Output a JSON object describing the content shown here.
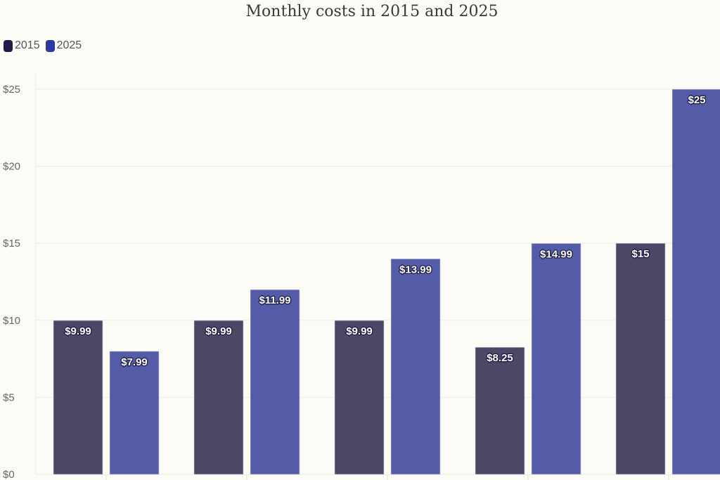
{
  "chart_data": {
    "type": "bar",
    "title": "Monthly costs in 2015 and 2025",
    "categories": [
      "",
      "",
      "",
      "",
      ""
    ],
    "series": [
      {
        "name": "2015",
        "values": [
          9.99,
          9.99,
          9.99,
          8.25,
          15
        ],
        "labels": [
          "$9.99",
          "$9.99",
          "$9.99",
          "$8.25",
          "$15"
        ],
        "color": "#4a4866",
        "legend_color": "#1f1d45"
      },
      {
        "name": "2025",
        "values": [
          7.99,
          11.99,
          13.99,
          14.99,
          25
        ],
        "labels": [
          "$7.99",
          "$11.99",
          "$13.99",
          "$14.99",
          "$25"
        ],
        "color": "#545ca8",
        "legend_color": "#2b3a9e"
      }
    ],
    "ylim": [
      0,
      25
    ],
    "yticks": [
      0,
      5,
      10,
      15,
      20,
      25
    ],
    "ytick_labels": [
      "$0",
      "$5",
      "$10",
      "$15",
      "$20",
      "$25"
    ],
    "grid": true,
    "legend_position": "top-left",
    "xlabel": "",
    "ylabel": ""
  }
}
